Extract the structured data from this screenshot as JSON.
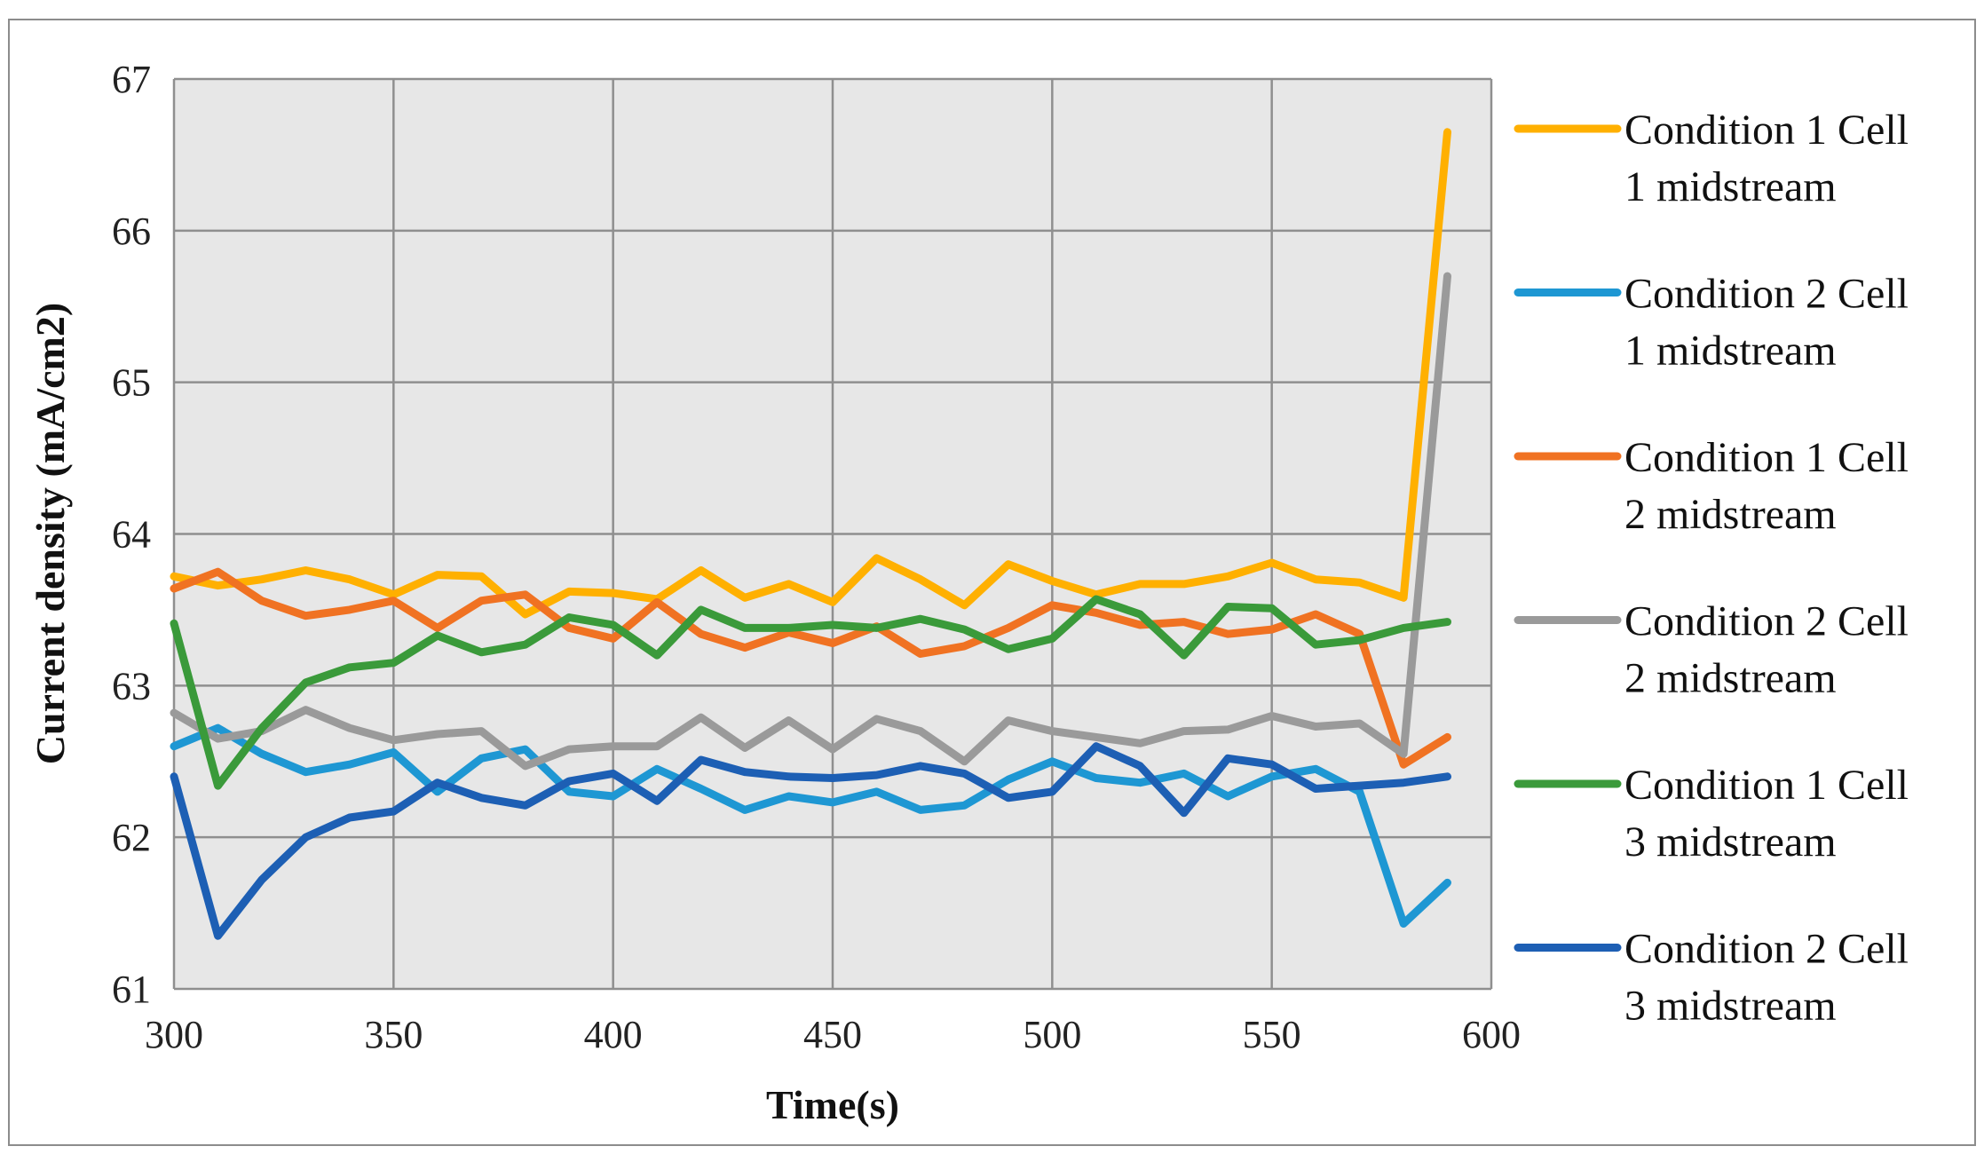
{
  "chart_data": {
    "type": "line",
    "title": "",
    "xlabel": "Time(s)",
    "ylabel": "Current  density  (mA/cm2)",
    "xlim": [
      300,
      600
    ],
    "ylim": [
      61,
      67
    ],
    "xticks": [
      300,
      350,
      400,
      450,
      500,
      550,
      600
    ],
    "yticks": [
      61,
      62,
      63,
      64,
      65,
      66,
      67
    ],
    "grid": true,
    "legend_position": "right",
    "x": [
      300,
      310,
      320,
      330,
      340,
      350,
      360,
      370,
      380,
      390,
      400,
      410,
      420,
      430,
      440,
      450,
      460,
      470,
      480,
      490,
      500,
      510,
      520,
      530,
      540,
      550,
      560,
      570,
      580,
      590
    ],
    "series": [
      {
        "name_lines": [
          "Condition 1 Cell",
          "1 midstream"
        ],
        "color": "#FFB000",
        "values": [
          63.72,
          63.66,
          63.7,
          63.76,
          63.7,
          63.6,
          63.73,
          63.72,
          63.47,
          63.62,
          63.61,
          63.57,
          63.76,
          63.58,
          63.67,
          63.55,
          63.84,
          63.7,
          63.53,
          63.8,
          63.69,
          63.6,
          63.67,
          63.67,
          63.72,
          63.81,
          63.7,
          63.68,
          63.58,
          66.65
        ]
      },
      {
        "name_lines": [
          "Condition 2 Cell",
          "1 midstream"
        ],
        "color": "#1E97D3",
        "values": [
          62.6,
          62.72,
          62.55,
          62.43,
          62.48,
          62.56,
          62.3,
          62.52,
          62.58,
          62.3,
          62.27,
          62.45,
          62.32,
          62.18,
          62.27,
          62.23,
          62.3,
          62.18,
          62.21,
          62.38,
          62.5,
          62.39,
          62.36,
          62.42,
          62.27,
          62.4,
          62.45,
          62.3,
          61.43,
          61.7
        ]
      },
      {
        "name_lines": [
          "Condition 1 Cell",
          "2 midstream"
        ],
        "color": "#F07222",
        "values": [
          63.64,
          63.75,
          63.56,
          63.46,
          63.5,
          63.56,
          63.38,
          63.56,
          63.6,
          63.38,
          63.31,
          63.55,
          63.34,
          63.25,
          63.35,
          63.28,
          63.39,
          63.21,
          63.26,
          63.38,
          63.53,
          63.48,
          63.4,
          63.42,
          63.34,
          63.37,
          63.47,
          63.34,
          62.48,
          62.66
        ]
      },
      {
        "name_lines": [
          "Condition 2 Cell",
          "2 midstream"
        ],
        "color": "#9A9A9A",
        "values": [
          62.82,
          62.65,
          62.7,
          62.84,
          62.72,
          62.64,
          62.68,
          62.7,
          62.47,
          62.58,
          62.6,
          62.6,
          62.79,
          62.59,
          62.77,
          62.58,
          62.78,
          62.7,
          62.5,
          62.77,
          62.7,
          62.66,
          62.62,
          62.7,
          62.71,
          62.8,
          62.73,
          62.75,
          62.55,
          65.7
        ]
      },
      {
        "name_lines": [
          "Condition 1 Cell",
          "3 midstream"
        ],
        "color": "#3A9A3A",
        "values": [
          63.41,
          62.34,
          62.72,
          63.02,
          63.12,
          63.15,
          63.33,
          63.22,
          63.27,
          63.45,
          63.4,
          63.2,
          63.5,
          63.38,
          63.38,
          63.4,
          63.38,
          63.44,
          63.37,
          63.24,
          63.31,
          63.57,
          63.47,
          63.2,
          63.52,
          63.51,
          63.27,
          63.3,
          63.38,
          63.42
        ]
      },
      {
        "name_lines": [
          "Condition 2 Cell",
          "3 midstream"
        ],
        "color": "#1D5FB4",
        "values": [
          62.4,
          61.35,
          61.72,
          62.0,
          62.13,
          62.17,
          62.36,
          62.26,
          62.21,
          62.37,
          62.42,
          62.24,
          62.51,
          62.43,
          62.4,
          62.39,
          62.41,
          62.47,
          62.42,
          62.26,
          62.3,
          62.6,
          62.47,
          62.16,
          62.52,
          62.48,
          62.32,
          62.34,
          62.36,
          62.4
        ]
      }
    ]
  }
}
